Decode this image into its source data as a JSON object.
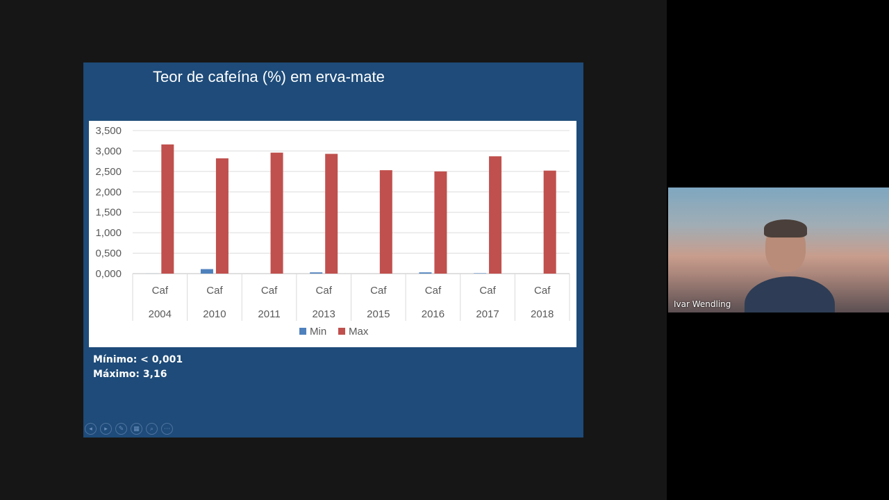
{
  "slide": {
    "title": "Teor de cafeína (%) em erva-mate",
    "notes": [
      "Mínimo: < 0,001",
      "Máximo: 3,16"
    ]
  },
  "chart_data": {
    "type": "bar",
    "categories": [
      "Caf 2004",
      "Caf 2010",
      "Caf 2011",
      "Caf 2013",
      "Caf 2015",
      "Caf 2016",
      "Caf 2017",
      "Caf 2018"
    ],
    "category_lines": [
      [
        "Caf",
        "2004"
      ],
      [
        "Caf",
        "2010"
      ],
      [
        "Caf",
        "2011"
      ],
      [
        "Caf",
        "2013"
      ],
      [
        "Caf",
        "2015"
      ],
      [
        "Caf",
        "2016"
      ],
      [
        "Caf",
        "2017"
      ],
      [
        "Caf",
        "2018"
      ]
    ],
    "series": [
      {
        "name": "Min",
        "color": "#4f81bd",
        "values": [
          0.001,
          0.11,
          0.0,
          0.03,
          0.0,
          0.03,
          0.01,
          0.0
        ]
      },
      {
        "name": "Max",
        "color": "#c0504d",
        "values": [
          3.16,
          2.82,
          2.96,
          2.93,
          2.53,
          2.5,
          2.87,
          2.52
        ]
      }
    ],
    "ylim": [
      0,
      3.5
    ],
    "yticks": [
      "0,000",
      "0,500",
      "1,000",
      "1,500",
      "2,000",
      "2,500",
      "3,000",
      "3,500"
    ],
    "grid": true,
    "legend": "bottom"
  },
  "controls": {
    "icons": [
      "previous-icon",
      "next-icon",
      "pen-icon",
      "slides-grid-icon",
      "zoom-icon",
      "more-icon"
    ],
    "glyphs": [
      "◂",
      "▸",
      "✎",
      "▦",
      "⌕",
      "⋯"
    ]
  },
  "participant": {
    "name": "Ivar Wendling"
  }
}
